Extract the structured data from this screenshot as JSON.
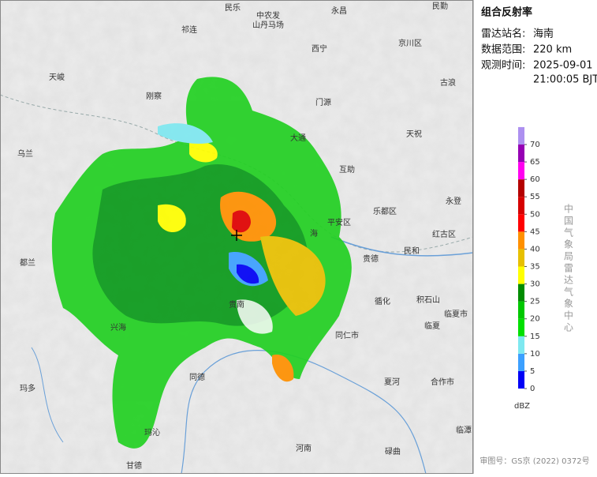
{
  "panel": {
    "title": "组合反射率",
    "station_label": "雷达站名:",
    "station": "海南",
    "range_label": "数据范围:",
    "range": "220 km",
    "time_label": "观测时间:",
    "date": "2025-09-01",
    "time": "21:00:05 BJT",
    "agency": "中国气象局雷达气象中心",
    "review_no": "审图号：GS京 (2022) 0372号"
  },
  "legend": {
    "unit": "dBZ",
    "ticks": [
      0,
      5,
      10,
      15,
      20,
      25,
      30,
      35,
      40,
      45,
      50,
      55,
      60,
      65,
      70
    ],
    "colors": [
      "#0000f6",
      "#3ca0ff",
      "#7ee8f0",
      "#00e000",
      "#00c800",
      "#008c00",
      "#ffff00",
      "#e7c000",
      "#ff9000",
      "#ff0000",
      "#d60000",
      "#b40000",
      "#ff00f0",
      "#9600b4",
      "#ad90f0"
    ]
  },
  "map": {
    "labels": [
      "民乐",
      "中农发",
      "山丹马场",
      "永昌",
      "民勤",
      "祁连",
      "西宁",
      "京川区",
      "天峻",
      "刚察",
      "门源",
      "古浪",
      "大通",
      "天祝",
      "乌兰",
      "互助",
      "乐都区",
      "平安区",
      "永登",
      "民和",
      "红古区",
      "都兰",
      "循化",
      "积石山",
      "临夏市",
      "临夏",
      "兴海",
      "贵南",
      "同仁市",
      "同德",
      "夏河",
      "合作市",
      "玛多",
      "玛沁",
      "河南",
      "碌曲",
      "临潭",
      "甘德",
      "海",
      "贵德"
    ]
  }
}
